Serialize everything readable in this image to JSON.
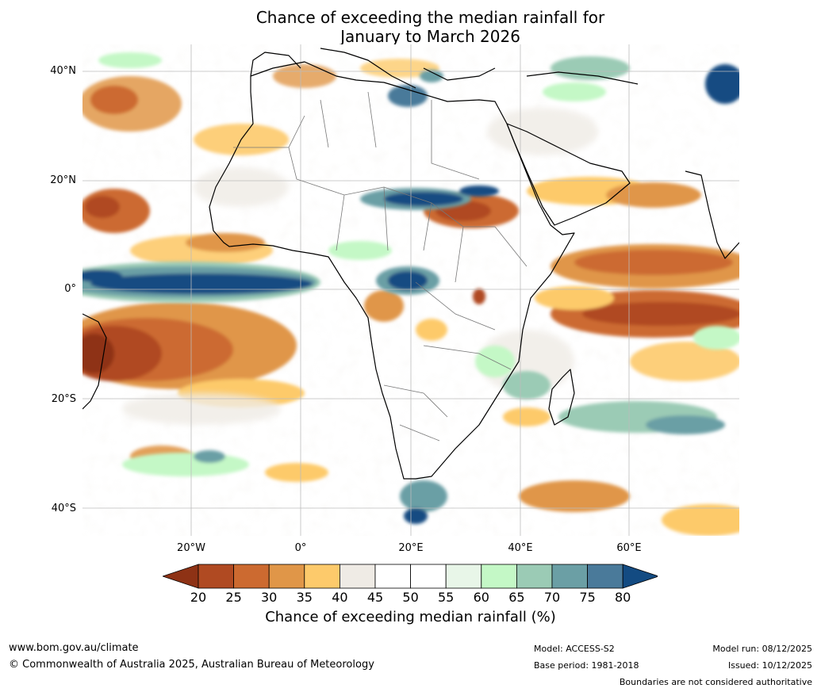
{
  "title": {
    "line1": "Chance of exceeding the median rainfall for",
    "line2": "January to March 2026"
  },
  "axes": {
    "lat_labels": [
      "40°N",
      "20°N",
      "0°",
      "20°S",
      "40°S"
    ],
    "lon_labels": [
      "20°W",
      "0°",
      "20°E",
      "40°E",
      "60°E"
    ]
  },
  "colorbar": {
    "label": "Chance of exceeding median rainfall (%)",
    "ticks": [
      "20",
      "25",
      "30",
      "35",
      "40",
      "45",
      "50",
      "55",
      "60",
      "65",
      "70",
      "75",
      "80"
    ],
    "colors": [
      "#8e3215",
      "#b04a22",
      "#cc6a30",
      "#e09648",
      "#fdca6b",
      "#efebe5",
      "#ffffff",
      "#ffffff",
      "#e8f6e8",
      "#c4f8c6",
      "#9bcbb5",
      "#6b9fa5",
      "#4a7a9a",
      "#134b82"
    ],
    "under_color": "#8e3215",
    "over_color": "#134b82"
  },
  "footer": {
    "website": "www.bom.gov.au/climate",
    "copyright": "© Commonwealth of Australia 2025, Australian Bureau of Meteorology",
    "model": "Model: ACCESS-S2",
    "base_period": "Base period: 1981-2018",
    "model_run": "Model run: 08/12/2025",
    "issued": "Issued: 10/12/2025",
    "disclaimer": "Boundaries are not considered authoritative"
  },
  "map_regions": {
    "equatorial_atlantic_high": "80",
    "central_africa_high": "80",
    "south_atlantic_low": "20",
    "indian_ocean_low": "20",
    "sahel_low": "25"
  }
}
